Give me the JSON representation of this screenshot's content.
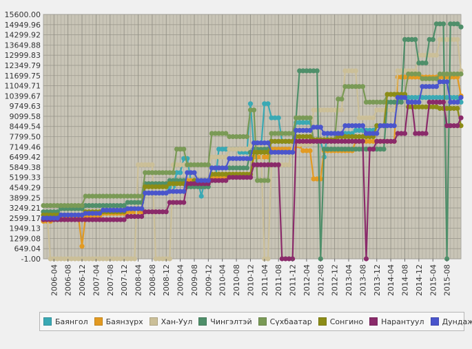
{
  "chart_data": {
    "type": "line",
    "title": "",
    "xlabel": "",
    "ylabel": "",
    "y_ticks": [
      "-1.00",
      "649.04",
      "1299.08",
      "1949.13",
      "2599.17",
      "3249.21",
      "3899.25",
      "4549.29",
      "5199.33",
      "5849.38",
      "6499.42",
      "7149.46",
      "7799.50",
      "8449.54",
      "9099.58",
      "9749.63",
      "10399.67",
      "11049.71",
      "11699.75",
      "12349.79",
      "12999.83",
      "13649.88",
      "14299.92",
      "14949.96",
      "15600.00"
    ],
    "ylim": [
      -1,
      15600
    ],
    "x_ticks": [
      "2006-04",
      "2006-08",
      "2006-12",
      "2007-04",
      "2007-08",
      "2007-12",
      "2008-04",
      "2008-08",
      "2008-12",
      "2009-04",
      "2009-08",
      "2009-12",
      "2010-04",
      "2010-08",
      "2010-12",
      "2011-04",
      "2011-08",
      "2011-12",
      "2012-04",
      "2012-08",
      "2012-12",
      "2013-04",
      "2013-08",
      "2013-12",
      "2014-04",
      "2014-08",
      "2014-12",
      "2015-04",
      "2015-08"
    ],
    "x_range": [
      "2006-01",
      "2015-12"
    ],
    "grid": true,
    "legend_position": "bottom",
    "series": [
      {
        "name": "Баянгол",
        "color": "#3aa9b4",
        "points": [
          [
            "2006-01",
            2500
          ],
          [
            "2006-06",
            2800
          ],
          [
            "2007-06",
            3000
          ],
          [
            "2008-01",
            3200
          ],
          [
            "2008-06",
            4200
          ],
          [
            "2009-01",
            4600
          ],
          [
            "2009-03",
            5500
          ],
          [
            "2009-05",
            6400
          ],
          [
            "2009-07",
            5000
          ],
          [
            "2009-10",
            4000
          ],
          [
            "2009-11",
            5000
          ],
          [
            "2010-03",
            7000
          ],
          [
            "2010-09",
            6800
          ],
          [
            "2010-12",
            9900
          ],
          [
            "2011-01",
            7000
          ],
          [
            "2011-04",
            9900
          ],
          [
            "2011-06",
            9000
          ],
          [
            "2011-09",
            7500
          ],
          [
            "2012-01",
            8700
          ],
          [
            "2012-06",
            7600
          ],
          [
            "2012-09",
            6500
          ],
          [
            "2012-10",
            8000
          ],
          [
            "2013-06",
            8200
          ],
          [
            "2013-12",
            8500
          ],
          [
            "2014-03",
            9500
          ],
          [
            "2014-06",
            10200
          ],
          [
            "2014-08",
            10300
          ],
          [
            "2014-12",
            10300
          ],
          [
            "2015-06",
            10300
          ],
          [
            "2015-12",
            10000
          ]
        ]
      },
      {
        "name": "Баянзүрх",
        "color": "#e29a22",
        "points": [
          [
            "2006-01",
            2400
          ],
          [
            "2006-04",
            2700
          ],
          [
            "2006-11",
            2700
          ],
          [
            "2006-12",
            800
          ],
          [
            "2007-01",
            2700
          ],
          [
            "2007-06",
            2900
          ],
          [
            "2008-01",
            3000
          ],
          [
            "2008-06",
            4800
          ],
          [
            "2009-06",
            5000
          ],
          [
            "2010-01",
            5200
          ],
          [
            "2010-06",
            5400
          ],
          [
            "2011-01",
            6500
          ],
          [
            "2011-06",
            7000
          ],
          [
            "2012-01",
            7200
          ],
          [
            "2012-03",
            6900
          ],
          [
            "2012-06",
            5100
          ],
          [
            "2012-09",
            6900
          ],
          [
            "2013-06",
            7500
          ],
          [
            "2014-06",
            11600
          ],
          [
            "2015-06",
            11600
          ],
          [
            "2015-12",
            10400
          ]
        ]
      },
      {
        "name": "Хан-Уул",
        "color": "#cbbf98",
        "points": [
          [
            "2006-01",
            3000
          ],
          [
            "2006-03",
            -1
          ],
          [
            "2007-08",
            -1
          ],
          [
            "2008-03",
            -1
          ],
          [
            "2008-04",
            6000
          ],
          [
            "2008-08",
            6000
          ],
          [
            "2008-09",
            -1
          ],
          [
            "2009-02",
            6000
          ],
          [
            "2009-08",
            6000
          ],
          [
            "2010-01",
            6500
          ],
          [
            "2010-06",
            7000
          ],
          [
            "2010-12",
            7200
          ],
          [
            "2011-04",
            -1
          ],
          [
            "2011-06",
            6000
          ],
          [
            "2011-12",
            7300
          ],
          [
            "2012-06",
            9500
          ],
          [
            "2012-10",
            9500
          ],
          [
            "2013-03",
            12000
          ],
          [
            "2013-07",
            9000
          ],
          [
            "2013-12",
            9500
          ],
          [
            "2014-06",
            12000
          ],
          [
            "2014-12",
            13000
          ],
          [
            "2015-06",
            14000
          ],
          [
            "2015-12",
            12000
          ]
        ]
      },
      {
        "name": "Чингэлтэй",
        "color": "#4f8f6a",
        "points": [
          [
            "2006-01",
            3000
          ],
          [
            "2006-06",
            3200
          ],
          [
            "2007-01",
            3400
          ],
          [
            "2008-01",
            3600
          ],
          [
            "2008-06",
            4800
          ],
          [
            "2009-01",
            5000
          ],
          [
            "2009-06",
            4600
          ],
          [
            "2010-01",
            5800
          ],
          [
            "2010-12",
            6800
          ],
          [
            "2011-01",
            7000
          ],
          [
            "2011-06",
            7500
          ],
          [
            "2012-01",
            9000
          ],
          [
            "2012-02",
            12000
          ],
          [
            "2012-07",
            12000
          ],
          [
            "2012-08",
            -1
          ],
          [
            "2012-09",
            7000
          ],
          [
            "2013-01",
            7000
          ],
          [
            "2013-09",
            7000
          ],
          [
            "2014-03",
            10000
          ],
          [
            "2014-08",
            14000
          ],
          [
            "2014-12",
            12500
          ],
          [
            "2015-03",
            14000
          ],
          [
            "2015-05",
            15000
          ],
          [
            "2015-08",
            -1
          ],
          [
            "2015-09",
            15000
          ],
          [
            "2015-12",
            14800
          ]
        ]
      },
      {
        "name": "Сүхбаатар",
        "color": "#7a9a56",
        "points": [
          [
            "2006-01",
            3400
          ],
          [
            "2006-10",
            3400
          ],
          [
            "2007-01",
            4000
          ],
          [
            "2008-01",
            4000
          ],
          [
            "2008-06",
            5500
          ],
          [
            "2009-01",
            5500
          ],
          [
            "2009-03",
            7000
          ],
          [
            "2009-06",
            6000
          ],
          [
            "2010-01",
            8000
          ],
          [
            "2010-06",
            7800
          ],
          [
            "2010-12",
            9500
          ],
          [
            "2011-02",
            5000
          ],
          [
            "2011-06",
            8000
          ],
          [
            "2012-01",
            9000
          ],
          [
            "2012-06",
            7500
          ],
          [
            "2013-01",
            10200
          ],
          [
            "2013-03",
            11000
          ],
          [
            "2013-09",
            10000
          ],
          [
            "2014-03",
            10500
          ],
          [
            "2014-09",
            11800
          ],
          [
            "2015-01",
            11500
          ],
          [
            "2015-06",
            11800
          ],
          [
            "2015-12",
            11800
          ]
        ]
      },
      {
        "name": "Сонгино",
        "color": "#8c8c16",
        "points": [
          [
            "2006-01",
            2800
          ],
          [
            "2007-01",
            3000
          ],
          [
            "2008-01",
            3200
          ],
          [
            "2008-06",
            4600
          ],
          [
            "2009-01",
            4800
          ],
          [
            "2009-08",
            5000
          ],
          [
            "2010-01",
            5400
          ],
          [
            "2011-01",
            6800
          ],
          [
            "2011-06",
            7500
          ],
          [
            "2012-01",
            7800
          ],
          [
            "2012-06",
            7600
          ],
          [
            "2013-01",
            7800
          ],
          [
            "2013-12",
            8500
          ],
          [
            "2014-03",
            10500
          ],
          [
            "2014-09",
            9700
          ],
          [
            "2015-06",
            9600
          ],
          [
            "2015-12",
            8500
          ]
        ]
      },
      {
        "name": "Нарантуул",
        "color": "#8a2a6a",
        "points": [
          [
            "2006-01",
            2500
          ],
          [
            "2007-06",
            2500
          ],
          [
            "2008-01",
            2700
          ],
          [
            "2008-06",
            3000
          ],
          [
            "2009-01",
            3600
          ],
          [
            "2009-06",
            4800
          ],
          [
            "2010-01",
            5000
          ],
          [
            "2010-06",
            5200
          ],
          [
            "2011-01",
            6000
          ],
          [
            "2011-08",
            6000
          ],
          [
            "2011-09",
            -1
          ],
          [
            "2011-12",
            -1
          ],
          [
            "2012-01",
            7500
          ],
          [
            "2013-06",
            7500
          ],
          [
            "2013-09",
            -1
          ],
          [
            "2013-10",
            7000
          ],
          [
            "2013-12",
            7500
          ],
          [
            "2014-06",
            8000
          ],
          [
            "2014-09",
            10000
          ],
          [
            "2014-11",
            8000
          ],
          [
            "2015-03",
            10000
          ],
          [
            "2015-08",
            8500
          ],
          [
            "2015-12",
            9000
          ]
        ]
      },
      {
        "name": "Дундаж үнэ",
        "color": "#4a55cc",
        "points": [
          [
            "2006-01",
            2600
          ],
          [
            "2006-06",
            2800
          ],
          [
            "2007-01",
            2900
          ],
          [
            "2007-06",
            3100
          ],
          [
            "2008-01",
            3200
          ],
          [
            "2008-06",
            4200
          ],
          [
            "2009-01",
            4300
          ],
          [
            "2009-06",
            5500
          ],
          [
            "2009-09",
            5000
          ],
          [
            "2010-01",
            5800
          ],
          [
            "2010-06",
            6400
          ],
          [
            "2011-01",
            7400
          ],
          [
            "2011-06",
            6800
          ],
          [
            "2012-01",
            8200
          ],
          [
            "2012-06",
            8400
          ],
          [
            "2012-09",
            8000
          ],
          [
            "2013-03",
            8500
          ],
          [
            "2013-09",
            8000
          ],
          [
            "2014-01",
            8500
          ],
          [
            "2014-06",
            10300
          ],
          [
            "2014-09",
            10000
          ],
          [
            "2015-01",
            11000
          ],
          [
            "2015-06",
            11300
          ],
          [
            "2015-09",
            10000
          ],
          [
            "2015-12",
            10300
          ]
        ]
      }
    ]
  }
}
